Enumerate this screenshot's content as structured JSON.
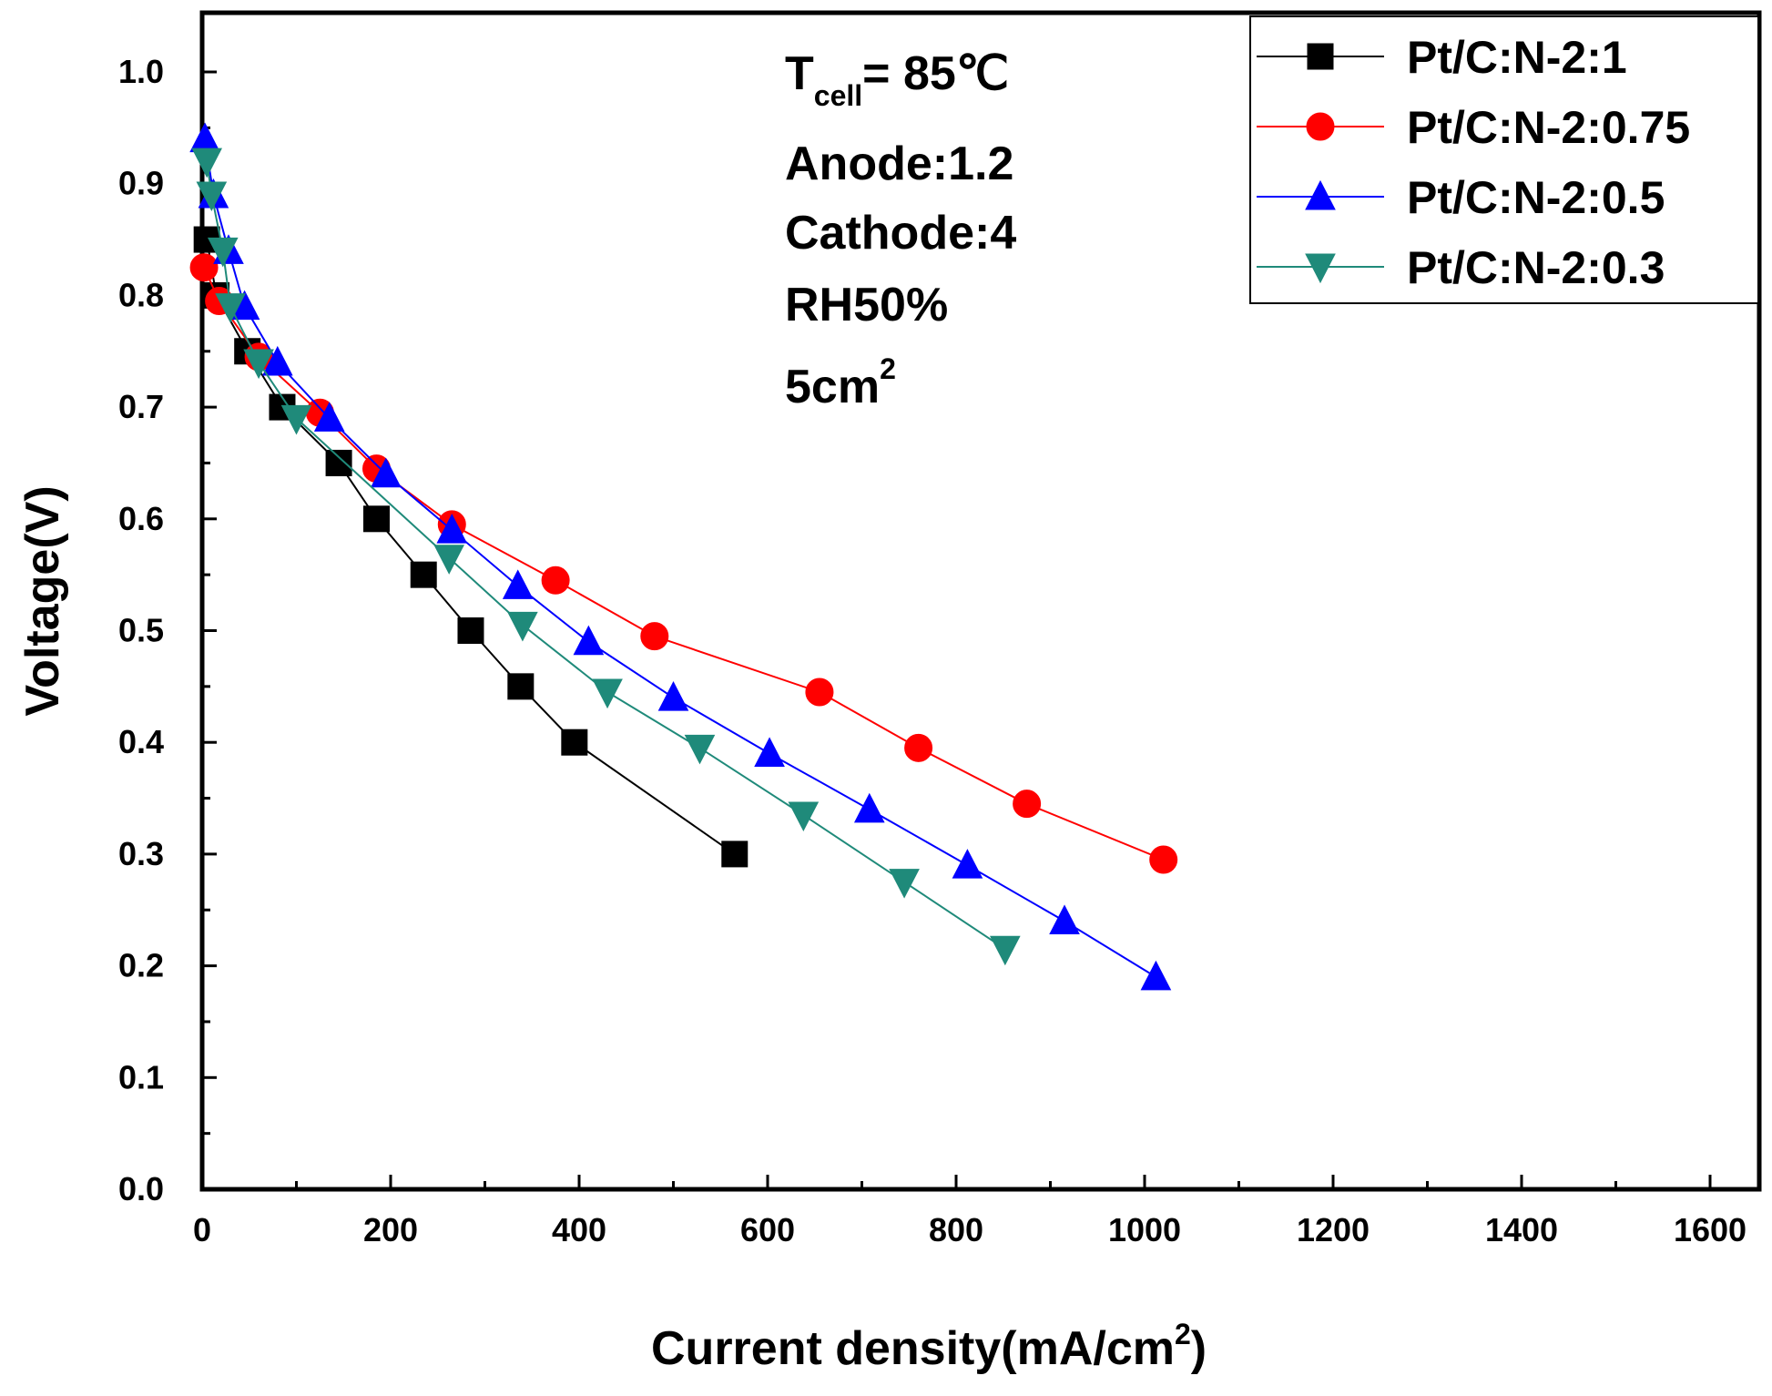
{
  "chart_data": {
    "type": "line",
    "title": "",
    "xlabel": "Current density(mA/cm",
    "xlabel_sup": "2",
    "xlabel_tail": ")",
    "ylabel": "Voltage(V)",
    "xlim": [
      0,
      1650
    ],
    "ylim": [
      0,
      1.05
    ],
    "xticks": [
      0,
      200,
      400,
      600,
      800,
      1000,
      1200,
      1400,
      1600
    ],
    "xtick_labels": [
      "0",
      "200",
      "400",
      "600",
      "800",
      "1000",
      "1200",
      "1400",
      "1600"
    ],
    "yticks": [
      0.0,
      0.1,
      0.2,
      0.3,
      0.4,
      0.5,
      0.6,
      0.7,
      0.8,
      0.9,
      1.0
    ],
    "ytick_labels": [
      "0.0",
      "0.1",
      "0.2",
      "0.3",
      "0.4",
      "0.5",
      "0.6",
      "0.7",
      "0.8",
      "0.9",
      "1.0"
    ],
    "grid": false,
    "legend_position": "top-right",
    "annotations": {
      "tcell_main": "T",
      "tcell_sub": "cell",
      "tcell_value": "= 85℃",
      "anode": "Anode:1.2",
      "cathode": "Cathode:4",
      "rh": "RH50%",
      "area_main": "5cm",
      "area_sup": "2"
    },
    "series": [
      {
        "name": "Pt/C:N-2:1",
        "color": "#000000",
        "marker": "square",
        "x": [
          5,
          15,
          48,
          85,
          145,
          185,
          235,
          285,
          338,
          395,
          565
        ],
        "y": [
          0.85,
          0.8,
          0.75,
          0.7,
          0.65,
          0.6,
          0.55,
          0.5,
          0.45,
          0.4,
          0.3
        ]
      },
      {
        "name": "Pt/C:N-2:0.75",
        "color": "#ff0000",
        "marker": "circle",
        "x": [
          2,
          18,
          60,
          125,
          185,
          265,
          375,
          480,
          655,
          760,
          875,
          1020
        ],
        "y": [
          0.825,
          0.795,
          0.745,
          0.695,
          0.645,
          0.595,
          0.545,
          0.495,
          0.445,
          0.395,
          0.345,
          0.295
        ]
      },
      {
        "name": "Pt/C:N-2:0.5",
        "color": "#0000ff",
        "marker": "triangle-up",
        "x": [
          3,
          12,
          28,
          45,
          80,
          135,
          195,
          265,
          335,
          410,
          500,
          602,
          708,
          812,
          915,
          1012
        ],
        "y": [
          0.94,
          0.89,
          0.84,
          0.79,
          0.74,
          0.69,
          0.64,
          0.59,
          0.54,
          0.49,
          0.44,
          0.39,
          0.34,
          0.29,
          0.24,
          0.19
        ]
      },
      {
        "name": "Pt/C:N-2:0.3",
        "color": "#1f8a7a",
        "marker": "triangle-down",
        "x": [
          5,
          10,
          22,
          30,
          60,
          100,
          262,
          340,
          430,
          528,
          638,
          745,
          852
        ],
        "y": [
          0.92,
          0.89,
          0.84,
          0.79,
          0.74,
          0.69,
          0.565,
          0.505,
          0.445,
          0.395,
          0.335,
          0.275,
          0.215
        ]
      }
    ]
  }
}
